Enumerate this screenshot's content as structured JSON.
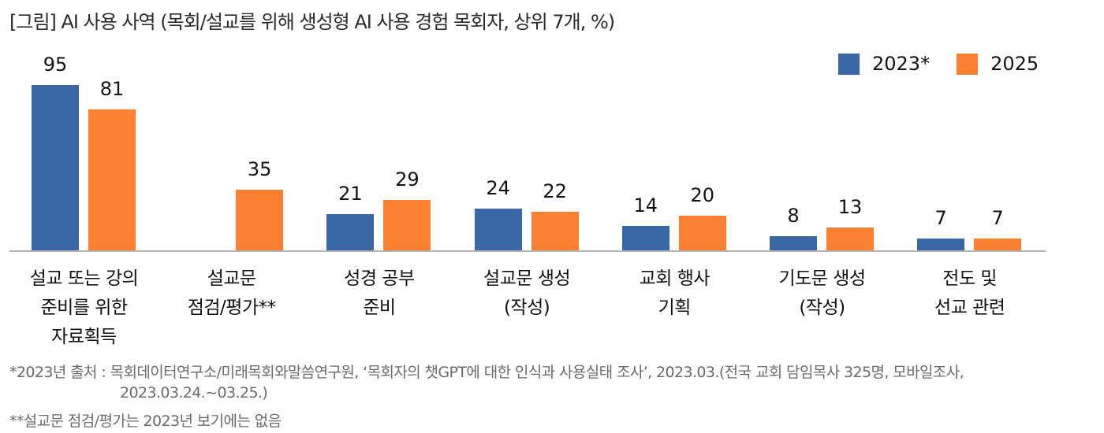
{
  "title": "[그림] AI 사용 사역 (목회/설교를 위해 생성형 AI 사용 경험 목회자, 상위 7개, %)",
  "legend": [
    {
      "label": "2023*",
      "color": "#3a67a6"
    },
    {
      "label": "2025",
      "color": "#fd8033"
    }
  ],
  "chart_data": {
    "type": "bar",
    "title": "[그림] AI 사용 사역 (목회/설교를 위해 생성형 AI 사용 경험 목회자, 상위 7개, %)",
    "xlabel": "",
    "ylabel": "%",
    "ylim": [
      0,
      100
    ],
    "grid": false,
    "legend_position": "top-right",
    "categories": [
      "설교 또는 강의\n준비를 위한\n자료획득",
      "설교문\n점검/평가**",
      "성경 공부\n준비",
      "설교문 생성\n(작성)",
      "교회 행사\n기획",
      "기도문 생성\n(작성)",
      "전도 및\n선교 관련"
    ],
    "series": [
      {
        "name": "2023*",
        "color": "#3a67a6",
        "values": [
          95,
          null,
          21,
          24,
          14,
          8,
          7
        ]
      },
      {
        "name": "2025",
        "color": "#fd8033",
        "values": [
          81,
          35,
          29,
          22,
          20,
          13,
          7
        ]
      }
    ]
  },
  "footnotes": {
    "note1_line1": "*2023년 출처 : 목회데이터연구소/미래목회와말씀연구원, ‘목회자의 챗GPT에 대한 인식과 사용실태 조사’, 2023.03.(전국 교회 담임목사 325명, 모바일조사,",
    "note1_line2": "2023.03.24.~03.25.)",
    "note2": "**설교문 점검/평가는 2023년 보기에는 없음"
  }
}
